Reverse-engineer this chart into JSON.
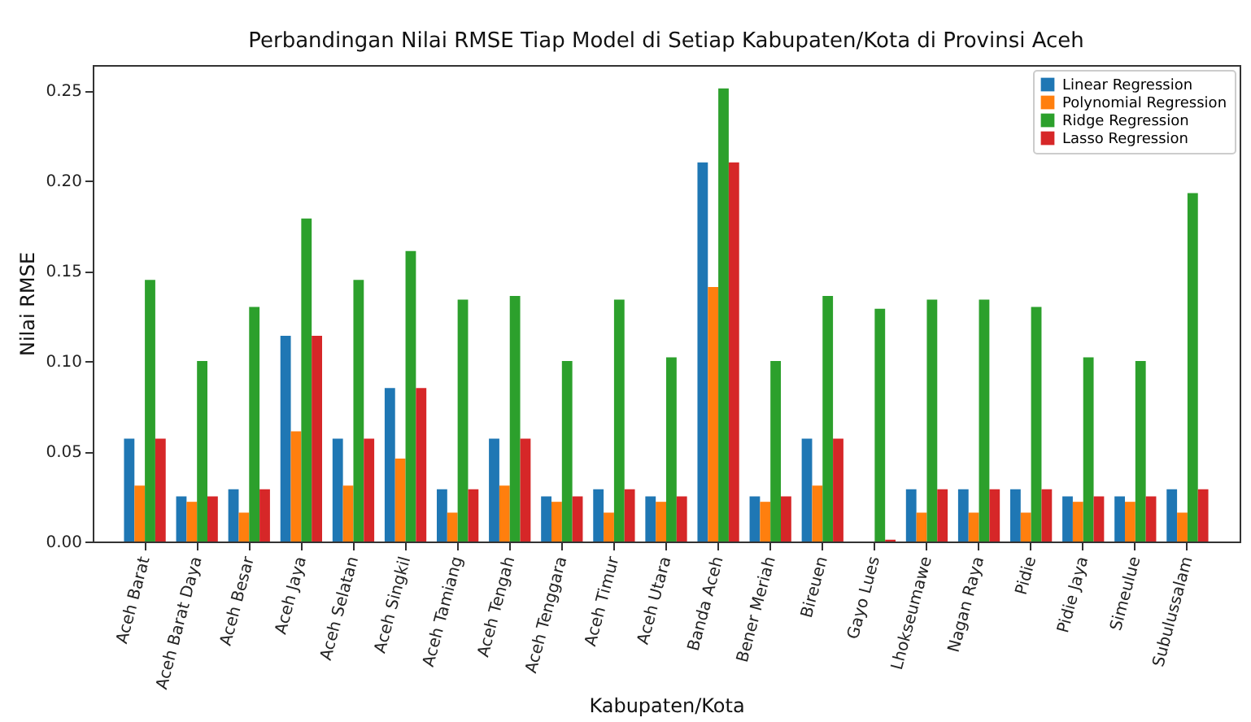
{
  "chart_data": {
    "type": "bar",
    "title": "Perbandingan Nilai RMSE Tiap Model di Setiap Kabupaten/Kota di Provinsi Aceh",
    "xlabel": "Kabupaten/Kota",
    "ylabel": "Nilai RMSE",
    "categories": [
      "Aceh Barat",
      "Aceh Barat Daya",
      "Aceh Besar",
      "Aceh Jaya",
      "Aceh Selatan",
      "Aceh Singkil",
      "Aceh Tamiang",
      "Aceh Tengah",
      "Aceh Tenggara",
      "Aceh Timur",
      "Aceh Utara",
      "Banda Aceh",
      "Bener Meriah",
      "Bireuen",
      "Gayo Lues",
      "Lhokseumawe",
      "Nagan Raya",
      "Pidie",
      "Pidie Jaya",
      "Simeulue",
      "Subulussalam"
    ],
    "series": [
      {
        "name": "Linear Regression",
        "color": "#1f77b4",
        "values": [
          0.057,
          0.025,
          0.029,
          0.114,
          0.057,
          0.085,
          0.029,
          0.057,
          0.025,
          0.029,
          0.025,
          0.21,
          0.025,
          0.057,
          0,
          0.029,
          0.029,
          0.029,
          0.025,
          0.025,
          0.029
        ]
      },
      {
        "name": "Polynomial Regression",
        "color": "#ff7f0e",
        "values": [
          0.031,
          0.022,
          0.016,
          0.061,
          0.031,
          0.046,
          0.016,
          0.031,
          0.022,
          0.016,
          0.022,
          0.141,
          0.022,
          0.031,
          0,
          0.016,
          0.016,
          0.016,
          0.022,
          0.022,
          0.016
        ]
      },
      {
        "name": "Ridge Regression",
        "color": "#2ca02c",
        "values": [
          0.145,
          0.1,
          0.13,
          0.179,
          0.145,
          0.161,
          0.134,
          0.136,
          0.1,
          0.134,
          0.102,
          0.251,
          0.1,
          0.136,
          0.129,
          0.134,
          0.134,
          0.13,
          0.102,
          0.1,
          0.193
        ]
      },
      {
        "name": "Lasso Regression",
        "color": "#d62728",
        "values": [
          0.057,
          0.025,
          0.029,
          0.114,
          0.057,
          0.085,
          0.029,
          0.057,
          0.025,
          0.029,
          0.025,
          0.21,
          0.025,
          0.057,
          0.001,
          0.029,
          0.029,
          0.029,
          0.025,
          0.025,
          0.029
        ]
      }
    ],
    "ylim": [
      0,
      0.264
    ],
    "yticks": [
      {
        "value": 0,
        "label": "0.00"
      },
      {
        "value": 0.05,
        "label": "0.05"
      },
      {
        "value": 0.1,
        "label": "0.10"
      },
      {
        "value": 0.15,
        "label": "0.15"
      },
      {
        "value": 0.2,
        "label": "0.20"
      },
      {
        "value": 0.25,
        "label": "0.25"
      }
    ],
    "legend": "top right"
  }
}
